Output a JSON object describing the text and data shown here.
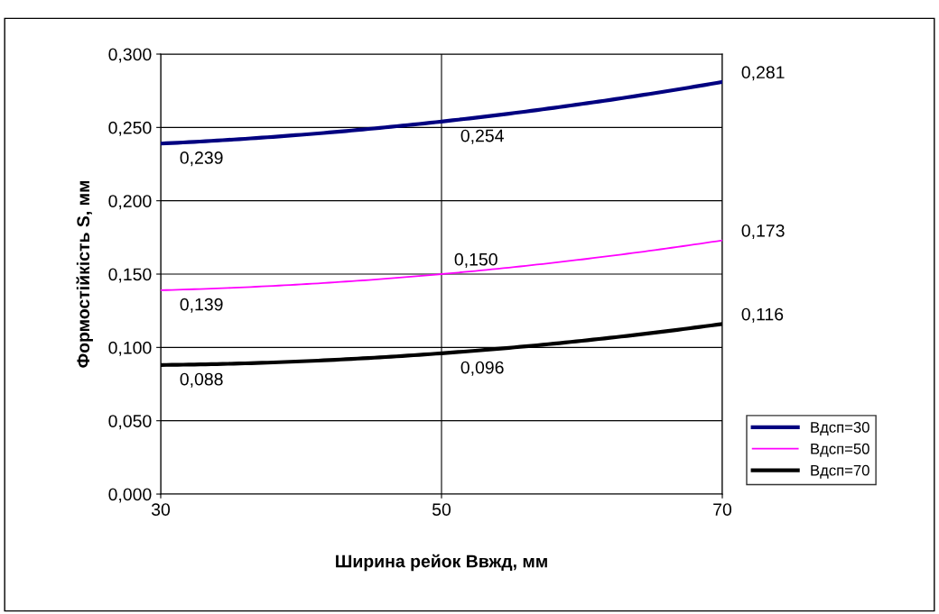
{
  "chart_data": {
    "type": "line",
    "xlabel": "Ширина рейок Bвжд, мм",
    "ylabel": "Формостійкість S, мм",
    "x": [
      30,
      50,
      70
    ],
    "series": [
      {
        "name": "Bдсп=30",
        "color": "#000080",
        "values": [
          0.239,
          0.254,
          0.281
        ],
        "value_labels": [
          "0,239",
          "0,254",
          "0,281"
        ]
      },
      {
        "name": "Bдсп=50",
        "color": "#ff00ff",
        "values": [
          0.139,
          0.15,
          0.173
        ],
        "value_labels": [
          "0,139",
          "0,150",
          "0,173"
        ]
      },
      {
        "name": "Bдсп=70",
        "color": "#000000",
        "values": [
          0.088,
          0.096,
          0.116
        ],
        "value_labels": [
          "0,088",
          "0,096",
          "0,116"
        ]
      }
    ],
    "xlim": [
      30,
      70
    ],
    "xticks": [
      30,
      50,
      70
    ],
    "ylim": [
      0,
      0.3
    ],
    "yticks": [
      {
        "value": 0,
        "label": "0,000"
      },
      {
        "value": 0.05,
        "label": "0,050"
      },
      {
        "value": 0.1,
        "label": "0,100"
      },
      {
        "value": 0.15,
        "label": "0,150"
      },
      {
        "value": 0.2,
        "label": "0,200"
      },
      {
        "value": 0.25,
        "label": "0,250"
      },
      {
        "value": 0.3,
        "label": "0,300"
      }
    ],
    "grid": true,
    "legend": "right",
    "marker": "none",
    "line_style": "solid"
  }
}
